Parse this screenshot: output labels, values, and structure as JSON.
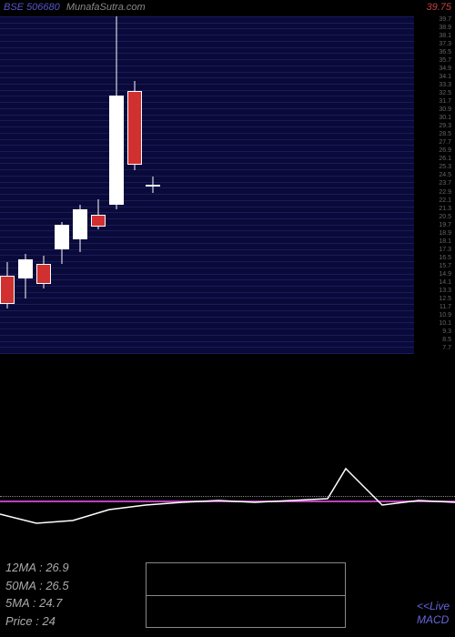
{
  "header": {
    "ticker": "BSE 506680",
    "site": "MunafaSutra.com"
  },
  "top_price": "39.75",
  "chart": {
    "type": "candlestick",
    "background_color": "#0a0a3a",
    "gridline_color": "#1a1a5a",
    "gridline_count": 55,
    "ylim": [
      7,
      41
    ],
    "ylabels": [
      "39.7",
      "38.9",
      "38.1",
      "37.3",
      "36.5",
      "35.7",
      "34.9",
      "34.1",
      "33.3",
      "32.5",
      "31.7",
      "30.9",
      "30.1",
      "29.3",
      "28.5",
      "27.7",
      "26.9",
      "26.1",
      "25.3",
      "24.5",
      "23.7",
      "22.9",
      "22.1",
      "21.3",
      "20.5",
      "19.7",
      "18.9",
      "18.1",
      "17.3",
      "16.5",
      "15.7",
      "14.9",
      "14.1",
      "13.3",
      "12.5",
      "11.7",
      "10.9",
      "10.1",
      "9.3",
      "8.5",
      "7.7"
    ],
    "candles": [
      {
        "x": 0,
        "o": 14.8,
        "h": 16.2,
        "l": 11.5,
        "c": 12.0,
        "dir": "down"
      },
      {
        "x": 20,
        "o": 14.5,
        "h": 17.0,
        "l": 12.5,
        "c": 16.5,
        "dir": "up"
      },
      {
        "x": 40,
        "o": 16.0,
        "h": 16.8,
        "l": 13.5,
        "c": 14.0,
        "dir": "down"
      },
      {
        "x": 60,
        "o": 17.5,
        "h": 20.2,
        "l": 16.0,
        "c": 20.0,
        "dir": "up"
      },
      {
        "x": 80,
        "o": 18.5,
        "h": 22.0,
        "l": 17.2,
        "c": 21.5,
        "dir": "up"
      },
      {
        "x": 100,
        "o": 21.0,
        "h": 22.5,
        "l": 19.5,
        "c": 19.8,
        "dir": "down"
      },
      {
        "x": 120,
        "o": 22.0,
        "h": 41.0,
        "l": 21.5,
        "c": 33.0,
        "dir": "up"
      },
      {
        "x": 140,
        "o": 33.5,
        "h": 34.5,
        "l": 25.5,
        "c": 26.0,
        "dir": "down"
      },
      {
        "x": 160,
        "o": 24.0,
        "h": 24.8,
        "l": 23.2,
        "c": 24.0,
        "dir": "doji"
      }
    ]
  },
  "macd": {
    "type": "line",
    "zero_y": 150,
    "dotted_y": 145,
    "line_color": "#ffffff",
    "zero_line_color": "#c040c0",
    "points": [
      [
        0,
        165
      ],
      [
        40,
        175
      ],
      [
        80,
        172
      ],
      [
        120,
        160
      ],
      [
        160,
        155
      ],
      [
        200,
        152
      ],
      [
        240,
        150
      ],
      [
        280,
        152
      ],
      [
        320,
        150
      ],
      [
        360,
        148
      ],
      [
        380,
        115
      ],
      [
        420,
        155
      ],
      [
        460,
        150
      ],
      [
        500,
        152
      ]
    ]
  },
  "stats": {
    "ma12": "12MA : 26.9",
    "ma50": "50MA : 26.5",
    "ma5": "5MA : 24.7",
    "price": "Price  : 24"
  },
  "live_label": {
    "line1": "<<Live",
    "line2": "MACD"
  }
}
